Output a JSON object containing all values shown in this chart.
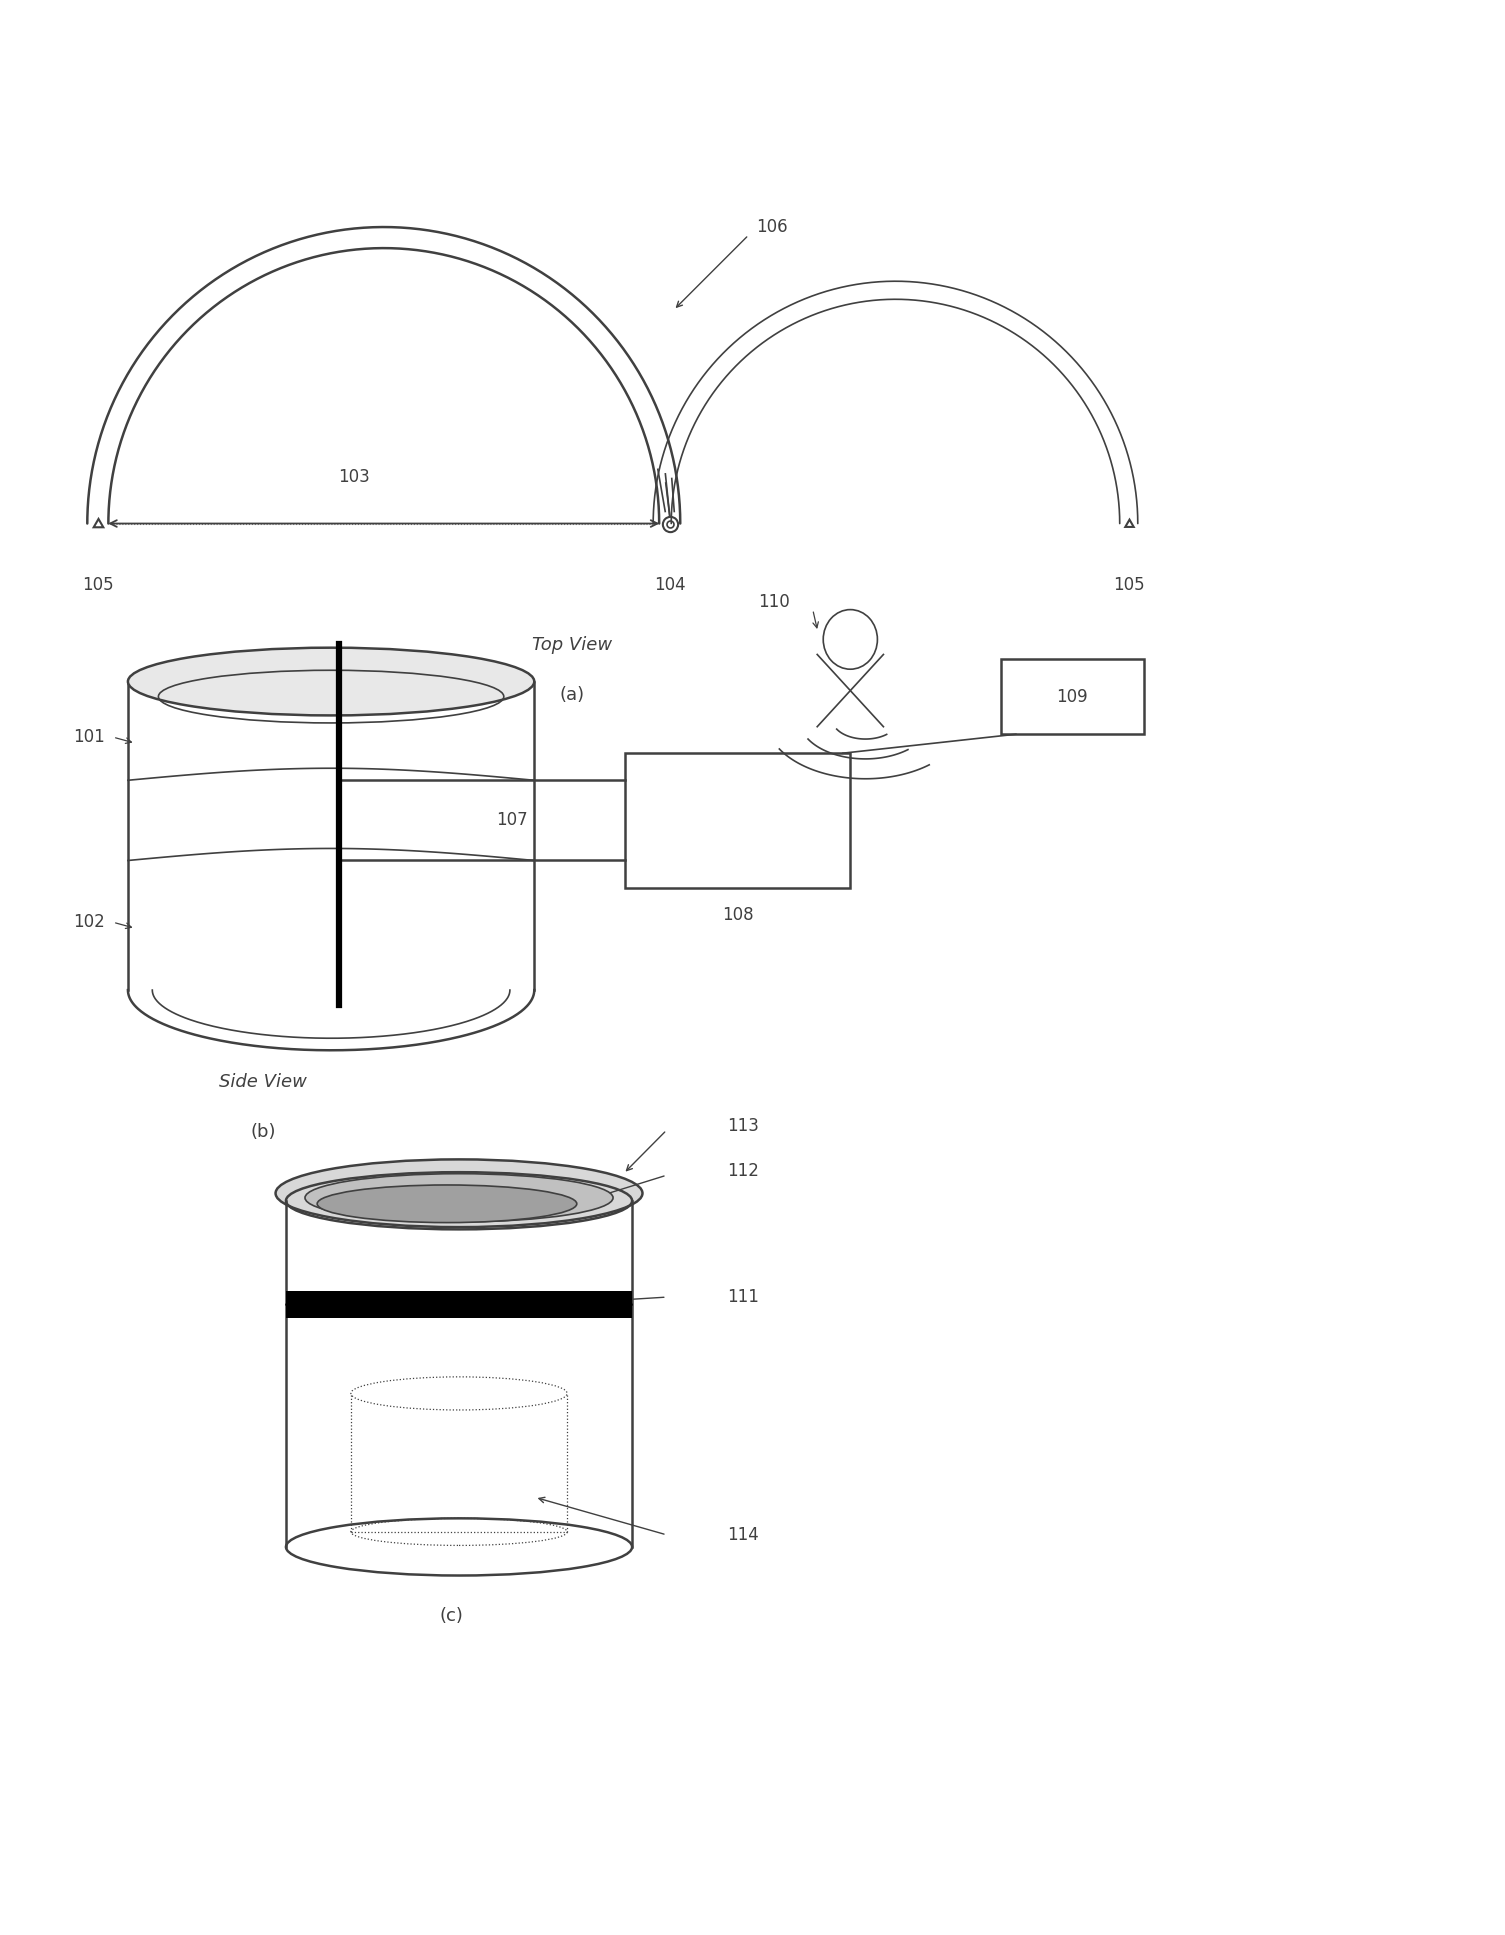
{
  "fig_width": 15.05,
  "fig_height": 19.35,
  "bg_color": "#ffffff",
  "panel_a": {
    "label_103": "103",
    "label_104": "104",
    "label_105_l": "105",
    "label_105_r": "105",
    "label_106": "106"
  },
  "panel_b": {
    "label_101": "101",
    "label_102": "102",
    "label_107": "107",
    "label_108": "108",
    "label_109": "109",
    "label_110": "110"
  },
  "panel_c": {
    "label_111": "111",
    "label_112": "112",
    "label_113": "113",
    "label_114": "114"
  }
}
